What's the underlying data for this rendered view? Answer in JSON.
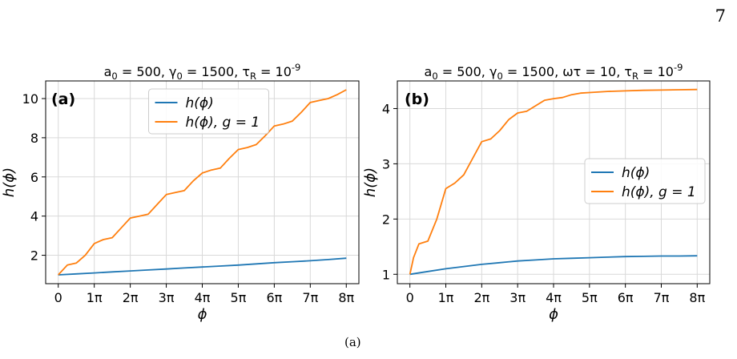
{
  "page": {
    "number": "7"
  },
  "colors": {
    "blue": "#1f77b4",
    "orange": "#ff7f0e",
    "grid": "#d9d9d9"
  },
  "chart_data": [
    {
      "id": "a",
      "type": "line",
      "panel_label": "(a)",
      "title": "a_0 = 500,  γ_0 = 1500,  τ_R = 10^-9",
      "xlabel": "ϕ",
      "ylabel": "h(ϕ)",
      "xlim": [
        -0.35,
        8.35
      ],
      "ylim": [
        0.55,
        10.9
      ],
      "xticks": [
        0,
        1,
        2,
        3,
        4,
        5,
        6,
        7,
        8
      ],
      "xtick_labels": [
        "0",
        "1π",
        "2π",
        "3π",
        "4π",
        "5π",
        "6π",
        "7π",
        "8π"
      ],
      "yticks": [
        2,
        4,
        6,
        8,
        10
      ],
      "ytick_labels": [
        "2",
        "4",
        "6",
        "8",
        "10"
      ],
      "grid": true,
      "legend": {
        "position": "top-center",
        "entries": [
          "h(ϕ)",
          "h(ϕ), g = 1"
        ]
      },
      "series": [
        {
          "name": "h(ϕ)",
          "color": "#1f77b4",
          "x": [
            0,
            0.5,
            1,
            1.5,
            2,
            2.5,
            3,
            3.5,
            4,
            4.5,
            5,
            5.5,
            6,
            6.5,
            7,
            7.5,
            8
          ],
          "y": [
            1.0,
            1.05,
            1.1,
            1.15,
            1.2,
            1.25,
            1.3,
            1.35,
            1.4,
            1.45,
            1.5,
            1.56,
            1.62,
            1.67,
            1.72,
            1.78,
            1.85
          ]
        },
        {
          "name": "h(ϕ), g = 1",
          "color": "#ff7f0e",
          "x": [
            0,
            0.25,
            0.5,
            0.75,
            1,
            1.25,
            1.5,
            1.75,
            2,
            2.25,
            2.5,
            2.75,
            3,
            3.25,
            3.5,
            3.75,
            4,
            4.25,
            4.5,
            4.75,
            5,
            5.25,
            5.5,
            5.75,
            6,
            6.25,
            6.5,
            6.75,
            7,
            7.25,
            7.5,
            7.75,
            8
          ],
          "y": [
            1.0,
            1.5,
            1.6,
            2.0,
            2.6,
            2.8,
            2.9,
            3.4,
            3.9,
            4.0,
            4.1,
            4.6,
            5.1,
            5.2,
            5.3,
            5.8,
            6.2,
            6.35,
            6.45,
            6.95,
            7.4,
            7.5,
            7.65,
            8.1,
            8.6,
            8.7,
            8.85,
            9.3,
            9.8,
            9.9,
            10.0,
            10.2,
            10.45
          ]
        }
      ]
    },
    {
      "id": "b",
      "type": "line",
      "panel_label": "(b)",
      "title": "a_0 = 500,  γ_0 = 1500,  ωτ = 10,  τ_R = 10^-9",
      "xlabel": "ϕ",
      "ylabel": "h(ϕ)",
      "xlim": [
        -0.35,
        8.35
      ],
      "ylim": [
        0.83,
        4.5
      ],
      "xticks": [
        0,
        1,
        2,
        3,
        4,
        5,
        6,
        7,
        8
      ],
      "xtick_labels": [
        "0",
        "1π",
        "2π",
        "3π",
        "4π",
        "5π",
        "6π",
        "7π",
        "8π"
      ],
      "yticks": [
        1,
        2,
        3,
        4
      ],
      "ytick_labels": [
        "1",
        "2",
        "3",
        "4"
      ],
      "grid": true,
      "legend": {
        "position": "center-right",
        "entries": [
          "h(ϕ)",
          "h(ϕ), g = 1"
        ]
      },
      "series": [
        {
          "name": "h(ϕ)",
          "color": "#1f77b4",
          "x": [
            0,
            0.5,
            1,
            1.5,
            2,
            2.5,
            3,
            3.5,
            4,
            4.5,
            5,
            5.5,
            6,
            6.5,
            7,
            7.5,
            8
          ],
          "y": [
            1.0,
            1.05,
            1.1,
            1.14,
            1.18,
            1.21,
            1.24,
            1.26,
            1.28,
            1.29,
            1.3,
            1.31,
            1.32,
            1.325,
            1.33,
            1.33,
            1.335
          ]
        },
        {
          "name": "h(ϕ), g = 1",
          "color": "#ff7f0e",
          "x": [
            0,
            0.1,
            0.25,
            0.5,
            0.75,
            1,
            1.25,
            1.5,
            1.75,
            2,
            2.25,
            2.5,
            2.75,
            3,
            3.25,
            3.5,
            3.75,
            4,
            4.25,
            4.5,
            4.75,
            5,
            5.5,
            6,
            6.5,
            7,
            7.5,
            8
          ],
          "y": [
            1.0,
            1.3,
            1.55,
            1.6,
            2.0,
            2.55,
            2.65,
            2.8,
            3.1,
            3.4,
            3.45,
            3.6,
            3.8,
            3.92,
            3.95,
            4.05,
            4.15,
            4.18,
            4.2,
            4.25,
            4.28,
            4.29,
            4.31,
            4.32,
            4.33,
            4.335,
            4.34,
            4.345
          ]
        }
      ]
    }
  ],
  "caption": "(a)"
}
